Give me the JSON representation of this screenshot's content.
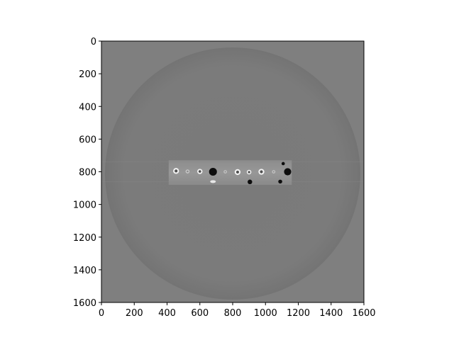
{
  "figure": {
    "image": {
      "description_icon": "ct-slice-image",
      "extent": {
        "x": [
          0,
          1600
        ],
        "y": [
          0,
          1600
        ]
      },
      "y_inverted": true,
      "colormap": "gray"
    },
    "axes": {
      "xticks": [
        0,
        200,
        400,
        600,
        800,
        1000,
        1200,
        1400,
        1600
      ],
      "yticks": [
        0,
        200,
        400,
        600,
        800,
        1000,
        1200,
        1400,
        1600
      ],
      "xtick_labels": [
        "0",
        "200",
        "400",
        "600",
        "800",
        "1000",
        "1200",
        "1400",
        "1600"
      ],
      "ytick_labels": [
        "0",
        "200",
        "400",
        "600",
        "800",
        "1000",
        "1200",
        "1400",
        "1600"
      ]
    },
    "features": {
      "sample_bar": {
        "x": [
          410,
          1160
        ],
        "y": [
          730,
          880
        ]
      },
      "holes": [
        {
          "x": 455,
          "y": 795,
          "r": 18,
          "tone": "ring-bright"
        },
        {
          "x": 525,
          "y": 798,
          "r": 12,
          "tone": "ring-faint"
        },
        {
          "x": 600,
          "y": 798,
          "r": 16,
          "tone": "ring-bright"
        },
        {
          "x": 680,
          "y": 800,
          "r": 24,
          "tone": "dark"
        },
        {
          "x": 755,
          "y": 800,
          "r": 10,
          "tone": "ring-faint"
        },
        {
          "x": 830,
          "y": 802,
          "r": 18,
          "tone": "ring-bright"
        },
        {
          "x": 900,
          "y": 802,
          "r": 14,
          "tone": "ring-bright"
        },
        {
          "x": 975,
          "y": 800,
          "r": 18,
          "tone": "ring-bright"
        },
        {
          "x": 1050,
          "y": 800,
          "r": 10,
          "tone": "ring-faint"
        },
        {
          "x": 1135,
          "y": 800,
          "r": 22,
          "tone": "dark"
        },
        {
          "x": 905,
          "y": 862,
          "r": 14,
          "tone": "dark"
        },
        {
          "x": 1090,
          "y": 860,
          "r": 12,
          "tone": "dark"
        },
        {
          "x": 1108,
          "y": 750,
          "r": 10,
          "tone": "dark"
        }
      ],
      "bright_spot": {
        "x": 680,
        "y": 860
      }
    }
  }
}
